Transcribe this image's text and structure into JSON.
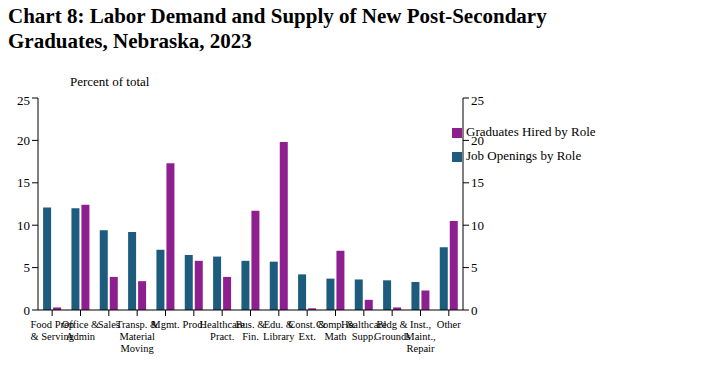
{
  "chart_data": {
    "type": "bar",
    "title": "Chart 8: Labor Demand and Supply of New Post-Secondary Graduates, Nebraska, 2023",
    "ylabel": "Percent of total",
    "categories": [
      "Food Prep & Serving",
      "Office & Admin",
      "Sales",
      "Transp. & Material Moving",
      "Mgmt.",
      "Prod.",
      "Healthcare Pract.",
      "Bus. & Fin.",
      "Edu. & Library",
      "Const. & Ext.",
      "Comp. & Math",
      "Healthcare Supp.",
      "Bldg & Grounds",
      "Inst., Maint., Repair",
      "Other"
    ],
    "series": [
      {
        "name": "Job Openings by Role",
        "color": "#1d5c7c",
        "values": [
          12.1,
          12.0,
          9.4,
          9.2,
          7.1,
          6.5,
          6.3,
          5.8,
          5.7,
          4.2,
          3.7,
          3.6,
          3.5,
          3.3,
          7.4
        ]
      },
      {
        "name": "Graduates Hired by Role",
        "color": "#8e1f8e",
        "values": [
          0.3,
          12.4,
          3.9,
          3.4,
          17.3,
          5.8,
          3.9,
          11.7,
          19.8,
          0.2,
          7.0,
          1.2,
          0.3,
          2.3,
          10.5
        ]
      }
    ],
    "ylim": [
      0,
      25
    ],
    "yticks": [
      0,
      5,
      10,
      15,
      20,
      25
    ],
    "y2lim": [
      0,
      25
    ],
    "y2ticks": [
      0,
      5,
      10,
      15,
      20,
      25
    ],
    "grid": false,
    "legend": "upper right"
  }
}
